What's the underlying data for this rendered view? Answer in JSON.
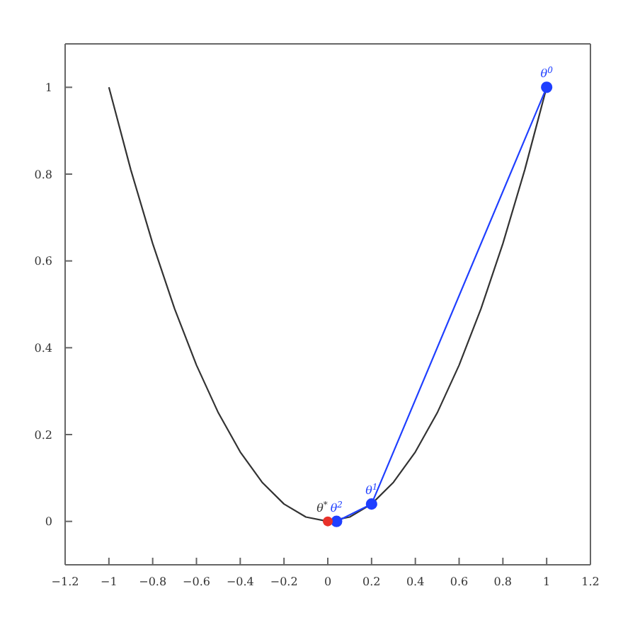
{
  "chart_data": {
    "type": "line",
    "xlim": [
      -1.2,
      1.2
    ],
    "ylim": [
      -0.1,
      1.1
    ],
    "xticks": [
      -1.2,
      -1,
      -0.8,
      -0.6,
      -0.4,
      -0.2,
      0,
      0.2,
      0.4,
      0.6,
      0.8,
      1,
      1.2
    ],
    "yticks": [
      0,
      0.2,
      0.4,
      0.6,
      0.8,
      1
    ],
    "series": [
      {
        "color": "#333333",
        "marker": "none",
        "x": [
          -1,
          -0.9,
          -0.8,
          -0.7,
          -0.6,
          -0.5,
          -0.4,
          -0.3,
          -0.2,
          -0.1,
          0,
          0.1,
          0.2,
          0.3,
          0.4,
          0.5,
          0.6,
          0.7,
          0.8,
          0.9,
          1
        ],
        "values": [
          1,
          0.81,
          0.64,
          0.49,
          0.36,
          0.25,
          0.16,
          0.09,
          0.04,
          0.01,
          0,
          0.01,
          0.04,
          0.09,
          0.16,
          0.25,
          0.36,
          0.49,
          0.64,
          0.81,
          1
        ]
      },
      {
        "color": "#1f3fff",
        "marker": "circle",
        "x": [
          1,
          0.2,
          0.04
        ],
        "values": [
          1,
          0.04,
          0
        ]
      },
      {
        "type": "scatter",
        "color": "#e8312a",
        "marker": "circle",
        "x": [
          0
        ],
        "values": [
          0
        ]
      }
    ],
    "annotations": [
      {
        "text": "θ$^{0}$",
        "x": 1,
        "y": 1
      },
      {
        "text": "θ$^{1}$",
        "x": 0.2,
        "y": 0.04
      },
      {
        "text": "θ$^{2}$",
        "x": 0.04,
        "y": 0
      },
      {
        "text": "θ$^{*}$",
        "x": 0,
        "y": 0
      }
    ]
  }
}
